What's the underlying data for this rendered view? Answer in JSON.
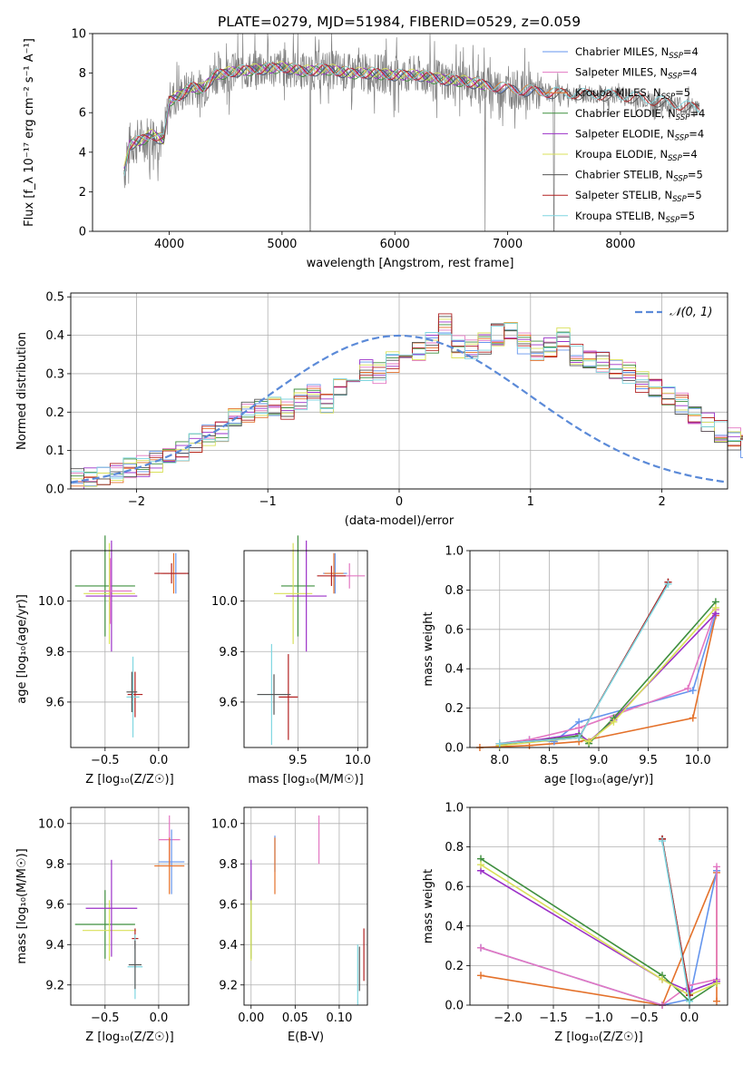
{
  "title": "PLATE=0279, MJD=51984, FIBERID=0529, z=0.059",
  "colors": {
    "chabrier_miles": "#6495ed",
    "salpeter_miles": "#e377c2",
    "kroupa_miles": "#e4712a",
    "chabrier_elodie": "#3f8f3f",
    "salpeter_elodie": "#9b30c8",
    "kroupa_elodie": "#d9e05a",
    "chabrier_stelib": "#555555",
    "salpeter_stelib": "#b22222",
    "kroupa_stelib": "#7fd6e0",
    "data": "#808080",
    "normal": "#5b8ad8"
  },
  "chart_data": [
    {
      "id": "spectrum",
      "type": "line",
      "xlabel": "wavelength [Angstrom, rest frame]",
      "ylabel": "Flux [f_λ 10⁻¹⁷ erg cm⁻² s⁻¹ A⁻¹]",
      "xlim": [
        3320,
        8950
      ],
      "ylim": [
        0,
        10
      ],
      "xticks": [
        "4000",
        "5000",
        "6000",
        "7000",
        "8000"
      ],
      "yticks": [
        "0",
        "2",
        "4",
        "6",
        "8",
        "10"
      ],
      "grid": false,
      "legend_position": "top-right",
      "legend": [
        {
          "label": "Chabrier MILES, N",
          "sub": "SSP",
          "suffix": "=4",
          "color_key": "chabrier_miles"
        },
        {
          "label": "Salpeter MILES, N",
          "sub": "SSP",
          "suffix": "=4",
          "color_key": "salpeter_miles"
        },
        {
          "label": "Kroupa MILES, N",
          "sub": "SSP",
          "suffix": "=5",
          "color_key": "kroupa_miles"
        },
        {
          "label": "Chabrier ELODIE, N",
          "sub": "SSP",
          "suffix": "=4",
          "color_key": "chabrier_elodie"
        },
        {
          "label": "Salpeter ELODIE, N",
          "sub": "SSP",
          "suffix": "=4",
          "color_key": "salpeter_elodie"
        },
        {
          "label": "Kroupa ELODIE, N",
          "sub": "SSP",
          "suffix": "=4",
          "color_key": "kroupa_elodie"
        },
        {
          "label": "Chabrier STELIB, N",
          "sub": "SSP",
          "suffix": "=5",
          "color_key": "chabrier_stelib"
        },
        {
          "label": "Salpeter STELIB, N",
          "sub": "SSP",
          "suffix": "=5",
          "color_key": "salpeter_stelib"
        },
        {
          "label": "Kroupa STELIB, N",
          "sub": "SSP",
          "suffix": "=5",
          "color_key": "kroupa_stelib"
        }
      ],
      "continuum": [
        [
          3600,
          3.0
        ],
        [
          3650,
          4.4
        ],
        [
          3750,
          4.6
        ],
        [
          3850,
          4.9
        ],
        [
          3950,
          4.6
        ],
        [
          4000,
          6.6
        ],
        [
          4100,
          6.9
        ],
        [
          4200,
          7.3
        ],
        [
          4300,
          7.2
        ],
        [
          4400,
          7.9
        ],
        [
          4600,
          8.1
        ],
        [
          4800,
          8.2
        ],
        [
          5000,
          8.3
        ],
        [
          5200,
          8.1
        ],
        [
          5400,
          8.2
        ],
        [
          5600,
          8.0
        ],
        [
          5800,
          8.0
        ],
        [
          6000,
          7.9
        ],
        [
          6200,
          7.9
        ],
        [
          6400,
          7.7
        ],
        [
          6600,
          7.6
        ],
        [
          6800,
          7.4
        ],
        [
          7000,
          7.2
        ],
        [
          7200,
          7.1
        ],
        [
          7400,
          7.0
        ],
        [
          7600,
          6.95
        ],
        [
          7800,
          6.9
        ],
        [
          8000,
          6.85
        ],
        [
          8200,
          6.7
        ],
        [
          8400,
          6.5
        ],
        [
          8600,
          6.3
        ],
        [
          8700,
          6.2
        ]
      ]
    },
    {
      "id": "residuals",
      "type": "bar",
      "xlabel": "(data-model)/error",
      "ylabel": "Normed distribution",
      "xlim": [
        -2.5,
        2.5
      ],
      "ylim": [
        0,
        0.51
      ],
      "xticks": [
        "−2",
        "−1",
        "0",
        "1",
        "2"
      ],
      "yticks": [
        "0.0",
        "0.1",
        "0.2",
        "0.3",
        "0.4",
        "0.5"
      ],
      "grid": true,
      "legend_position": "top-right",
      "legend_label": "𝒩(0, 1)",
      "bin_width": 0.1,
      "hist_bins": [
        0.025,
        0.025,
        0.03,
        0.04,
        0.055,
        0.06,
        0.07,
        0.08,
        0.1,
        0.12,
        0.14,
        0.15,
        0.18,
        0.2,
        0.21,
        0.22,
        0.21,
        0.23,
        0.25,
        0.22,
        0.26,
        0.29,
        0.31,
        0.3,
        0.33,
        0.35,
        0.36,
        0.38,
        0.43,
        0.37,
        0.36,
        0.38,
        0.4,
        0.41,
        0.38,
        0.36,
        0.37,
        0.39,
        0.35,
        0.34,
        0.33,
        0.31,
        0.3,
        0.28,
        0.26,
        0.24,
        0.22,
        0.2,
        0.17,
        0.15,
        0.13,
        0.11,
        0.1,
        0.09,
        0.07,
        0.06,
        0.06,
        0.05,
        0.045,
        0.04
      ],
      "hist_left_edge": -2.5,
      "models": 9,
      "seed_offsets": [
        0.0,
        0.7,
        1.4,
        2.1,
        2.8,
        3.5,
        4.2,
        4.9,
        5.6
      ]
    },
    {
      "id": "age_Z",
      "type": "scatter",
      "xlabel": "Z [log₁₀(Z/Z☉)]",
      "ylabel": "age  [log₁₀(age/yr)]",
      "xlim": [
        -0.82,
        0.28
      ],
      "ylim": [
        9.42,
        10.2
      ],
      "xticks": [
        "−0.5",
        "0.0"
      ],
      "yticks": [
        "9.6",
        "9.8",
        "10.0"
      ],
      "grid": true,
      "points": [
        {
          "x": -0.5,
          "y": 10.06,
          "xerr": 0.28,
          "yerr": 0.2,
          "c": "chabrier_elodie"
        },
        {
          "x": -0.46,
          "y": 10.03,
          "xerr": 0.24,
          "yerr": 0.2,
          "c": "kroupa_elodie"
        },
        {
          "x": -0.44,
          "y": 10.02,
          "xerr": 0.24,
          "yerr": 0.22,
          "c": "salpeter_elodie"
        },
        {
          "x": -0.45,
          "y": 10.04,
          "xerr": 0.2,
          "yerr": 0.13,
          "c": "salpeter_miles"
        },
        {
          "x": 0.16,
          "y": 10.11,
          "xerr": 0.12,
          "yerr": 0.08,
          "c": "chabrier_miles"
        },
        {
          "x": 0.14,
          "y": 10.11,
          "xerr": 0.12,
          "yerr": 0.08,
          "c": "kroupa_miles"
        },
        {
          "x": 0.12,
          "y": 10.11,
          "xerr": 0.16,
          "yerr": 0.04,
          "c": "salpeter_stelib"
        },
        {
          "x": -0.22,
          "y": 9.63,
          "xerr": 0.07,
          "yerr": 0.09,
          "c": "salpeter_stelib"
        },
        {
          "x": -0.24,
          "y": 9.62,
          "xerr": 0.06,
          "yerr": 0.16,
          "c": "kroupa_stelib"
        },
        {
          "x": -0.25,
          "y": 9.64,
          "xerr": 0.05,
          "yerr": 0.08,
          "c": "chabrier_stelib"
        }
      ]
    },
    {
      "id": "age_mass",
      "type": "scatter",
      "xlabel": "mass [log₁₀(M/M☉)]",
      "ylabel": "",
      "xlim": [
        9.05,
        10.08
      ],
      "ylim": [
        9.42,
        10.2
      ],
      "xticks": [
        "9.5",
        "10.0"
      ],
      "yticks": [
        "9.6",
        "9.8",
        "10.0"
      ],
      "grid": true,
      "points": [
        {
          "x": 9.5,
          "y": 10.06,
          "xerr": 0.14,
          "yerr": 0.2,
          "c": "chabrier_elodie"
        },
        {
          "x": 9.46,
          "y": 10.03,
          "xerr": 0.16,
          "yerr": 0.2,
          "c": "kroupa_elodie"
        },
        {
          "x": 9.57,
          "y": 10.02,
          "xerr": 0.17,
          "yerr": 0.22,
          "c": "salpeter_elodie"
        },
        {
          "x": 9.93,
          "y": 10.1,
          "xerr": 0.13,
          "yerr": 0.05,
          "c": "salpeter_miles"
        },
        {
          "x": 9.81,
          "y": 10.11,
          "xerr": 0.1,
          "yerr": 0.08,
          "c": "chabrier_miles"
        },
        {
          "x": 9.8,
          "y": 10.11,
          "xerr": 0.08,
          "yerr": 0.08,
          "c": "kroupa_miles"
        },
        {
          "x": 9.78,
          "y": 10.1,
          "xerr": 0.12,
          "yerr": 0.04,
          "c": "salpeter_stelib"
        },
        {
          "x": 9.42,
          "y": 9.62,
          "xerr": 0.08,
          "yerr": 0.17,
          "c": "salpeter_stelib"
        },
        {
          "x": 9.28,
          "y": 9.63,
          "xerr": 0.12,
          "yerr": 0.2,
          "c": "kroupa_stelib"
        },
        {
          "x": 9.3,
          "y": 9.63,
          "xerr": 0.14,
          "yerr": 0.08,
          "c": "chabrier_stelib"
        }
      ]
    },
    {
      "id": "weight_age",
      "type": "line",
      "xlabel": "age  [log₁₀(age/yr)]",
      "ylabel": "mass weight",
      "xlim": [
        7.7,
        10.3
      ],
      "ylim": [
        0,
        1.0
      ],
      "xticks": [
        "8.0",
        "8.5",
        "9.0",
        "9.5",
        "10.0"
      ],
      "yticks": [
        "0.0",
        "0.2",
        "0.4",
        "0.6",
        "0.8",
        "1.0"
      ],
      "grid": true,
      "series": [
        {
          "c": "kroupa_miles",
          "x": [
            7.8,
            8.3,
            8.8,
            9.95,
            10.18
          ],
          "y": [
            0.0,
            0.01,
            0.03,
            0.15,
            0.67
          ]
        },
        {
          "c": "chabrier_miles",
          "x": [
            8.0,
            8.3,
            8.55,
            8.8,
            9.95,
            10.18
          ],
          "y": [
            0.02,
            0.04,
            0.03,
            0.13,
            0.29,
            0.68
          ]
        },
        {
          "c": "salpeter_miles",
          "x": [
            8.0,
            8.3,
            8.8,
            9.9,
            10.18
          ],
          "y": [
            0.02,
            0.04,
            0.1,
            0.3,
            0.7
          ]
        },
        {
          "c": "salpeter_elodie",
          "x": [
            8.0,
            8.8,
            8.9,
            9.15,
            10.18
          ],
          "y": [
            0.01,
            0.07,
            0.03,
            0.14,
            0.68
          ]
        },
        {
          "c": "chabrier_elodie",
          "x": [
            8.0,
            8.8,
            8.9,
            9.15,
            10.18
          ],
          "y": [
            0.01,
            0.06,
            0.02,
            0.15,
            0.74
          ]
        },
        {
          "c": "kroupa_elodie",
          "x": [
            8.0,
            8.8,
            8.9,
            9.15,
            10.18
          ],
          "y": [
            0.01,
            0.05,
            0.03,
            0.13,
            0.71
          ]
        },
        {
          "c": "chabrier_stelib",
          "x": [
            8.0,
            8.8,
            9.7
          ],
          "y": [
            0.02,
            0.05,
            0.84
          ]
        },
        {
          "c": "salpeter_stelib",
          "x": [
            8.0,
            8.8,
            9.7
          ],
          "y": [
            0.02,
            0.05,
            0.84
          ]
        },
        {
          "c": "kroupa_stelib",
          "x": [
            8.0,
            8.8,
            9.7
          ],
          "y": [
            0.02,
            0.05,
            0.83
          ]
        }
      ]
    },
    {
      "id": "mass_Z",
      "type": "scatter",
      "xlabel": "Z [log₁₀(Z/Z☉)]",
      "ylabel": "mass [log₁₀(M/M☉)]",
      "xlim": [
        -0.82,
        0.28
      ],
      "ylim": [
        9.1,
        10.08
      ],
      "xticks": [
        "−0.5",
        "0.0"
      ],
      "yticks": [
        "9.2",
        "9.4",
        "9.6",
        "9.8",
        "10.0"
      ],
      "grid": true,
      "points": [
        {
          "x": -0.5,
          "y": 9.5,
          "xerr": 0.28,
          "yerr": 0.17,
          "c": "chabrier_elodie"
        },
        {
          "x": -0.46,
          "y": 9.47,
          "xerr": 0.25,
          "yerr": 0.15,
          "c": "kroupa_elodie"
        },
        {
          "x": -0.44,
          "y": 9.58,
          "xerr": 0.24,
          "yerr": 0.24,
          "c": "salpeter_elodie"
        },
        {
          "x": 0.1,
          "y": 9.92,
          "xerr": 0.1,
          "yerr": 0.12,
          "c": "salpeter_miles"
        },
        {
          "x": 0.12,
          "y": 9.81,
          "xerr": 0.12,
          "yerr": 0.16,
          "c": "chabrier_miles"
        },
        {
          "x": 0.1,
          "y": 9.79,
          "xerr": 0.14,
          "yerr": 0.14,
          "c": "kroupa_miles"
        },
        {
          "x": -0.22,
          "y": 9.43,
          "xerr": 0.03,
          "yerr": 0.05,
          "c": "salpeter_stelib"
        },
        {
          "x": -0.22,
          "y": 9.29,
          "xerr": 0.07,
          "yerr": 0.16,
          "c": "kroupa_stelib"
        },
        {
          "x": -0.22,
          "y": 9.3,
          "xerr": 0.06,
          "yerr": 0.12,
          "c": "chabrier_stelib"
        }
      ]
    },
    {
      "id": "mass_ebv",
      "type": "scatter",
      "xlabel": "E(B-V)",
      "ylabel": "",
      "xlim": [
        -0.008,
        0.132
      ],
      "ylim": [
        9.1,
        10.08
      ],
      "xticks": [
        "0.00",
        "0.05",
        "0.10"
      ],
      "yticks": [
        "9.2",
        "9.4",
        "9.6",
        "9.8",
        "10.0"
      ],
      "grid": true,
      "points": [
        {
          "x": 0.0,
          "y": 9.5,
          "yerr": 0.17,
          "c": "chabrier_elodie"
        },
        {
          "x": 0.0,
          "y": 9.47,
          "yerr": 0.15,
          "c": "kroupa_elodie"
        },
        {
          "x": 0.0,
          "y": 9.72,
          "yerr": 0.1,
          "c": "salpeter_elodie"
        },
        {
          "x": 0.077,
          "y": 9.92,
          "yerr": 0.12,
          "c": "salpeter_miles"
        },
        {
          "x": 0.027,
          "y": 9.85,
          "yerr": 0.09,
          "c": "chabrier_miles"
        },
        {
          "x": 0.027,
          "y": 9.79,
          "yerr": 0.14,
          "c": "kroupa_miles"
        },
        {
          "x": 0.128,
          "y": 9.35,
          "yerr": 0.13,
          "c": "salpeter_stelib"
        },
        {
          "x": 0.121,
          "y": 9.25,
          "yerr": 0.15,
          "c": "kroupa_stelib"
        },
        {
          "x": 0.123,
          "y": 9.28,
          "yerr": 0.11,
          "c": "chabrier_stelib"
        }
      ]
    },
    {
      "id": "weight_Z",
      "type": "line",
      "xlabel": "Z [log₁₀(Z/Z☉)]",
      "ylabel": "mass weight",
      "xlim": [
        -2.42,
        0.42
      ],
      "ylim": [
        0,
        1.0
      ],
      "xticks": [
        "−2.0",
        "−1.5",
        "−1.0",
        "−0.5",
        "0.0"
      ],
      "yticks": [
        "0.0",
        "0.2",
        "0.4",
        "0.6",
        "0.8",
        "1.0"
      ],
      "grid": true,
      "series": [
        {
          "c": "kroupa_miles",
          "x": [
            -2.3,
            -0.3,
            0.3,
            0.3
          ],
          "y": [
            0.15,
            0.0,
            0.67,
            0.02
          ]
        },
        {
          "c": "chabrier_miles",
          "x": [
            -2.3,
            -0.3,
            0.0,
            0.3
          ],
          "y": [
            0.29,
            0.0,
            0.03,
            0.68
          ]
        },
        {
          "c": "salpeter_miles",
          "x": [
            -2.3,
            -0.3,
            0.0,
            0.3,
            0.3
          ],
          "y": [
            0.29,
            0.0,
            0.1,
            0.13,
            0.7
          ]
        },
        {
          "c": "salpeter_elodie",
          "x": [
            -2.3,
            -0.3,
            0.0,
            0.3
          ],
          "y": [
            0.68,
            0.13,
            0.07,
            0.12
          ]
        },
        {
          "c": "chabrier_elodie",
          "x": [
            -2.3,
            -0.3,
            0.0,
            0.3
          ],
          "y": [
            0.74,
            0.15,
            0.02,
            0.11
          ]
        },
        {
          "c": "kroupa_elodie",
          "x": [
            -2.3,
            -0.3,
            0.0,
            0.3
          ],
          "y": [
            0.71,
            0.13,
            0.05,
            0.11
          ]
        },
        {
          "c": "chabrier_stelib",
          "x": [
            -0.3,
            0.0
          ],
          "y": [
            0.84,
            0.05
          ]
        },
        {
          "c": "salpeter_stelib",
          "x": [
            -0.3,
            0.0
          ],
          "y": [
            0.84,
            0.05
          ]
        },
        {
          "c": "kroupa_stelib",
          "x": [
            -0.3,
            0.0
          ],
          "y": [
            0.83,
            0.02
          ]
        }
      ]
    }
  ]
}
